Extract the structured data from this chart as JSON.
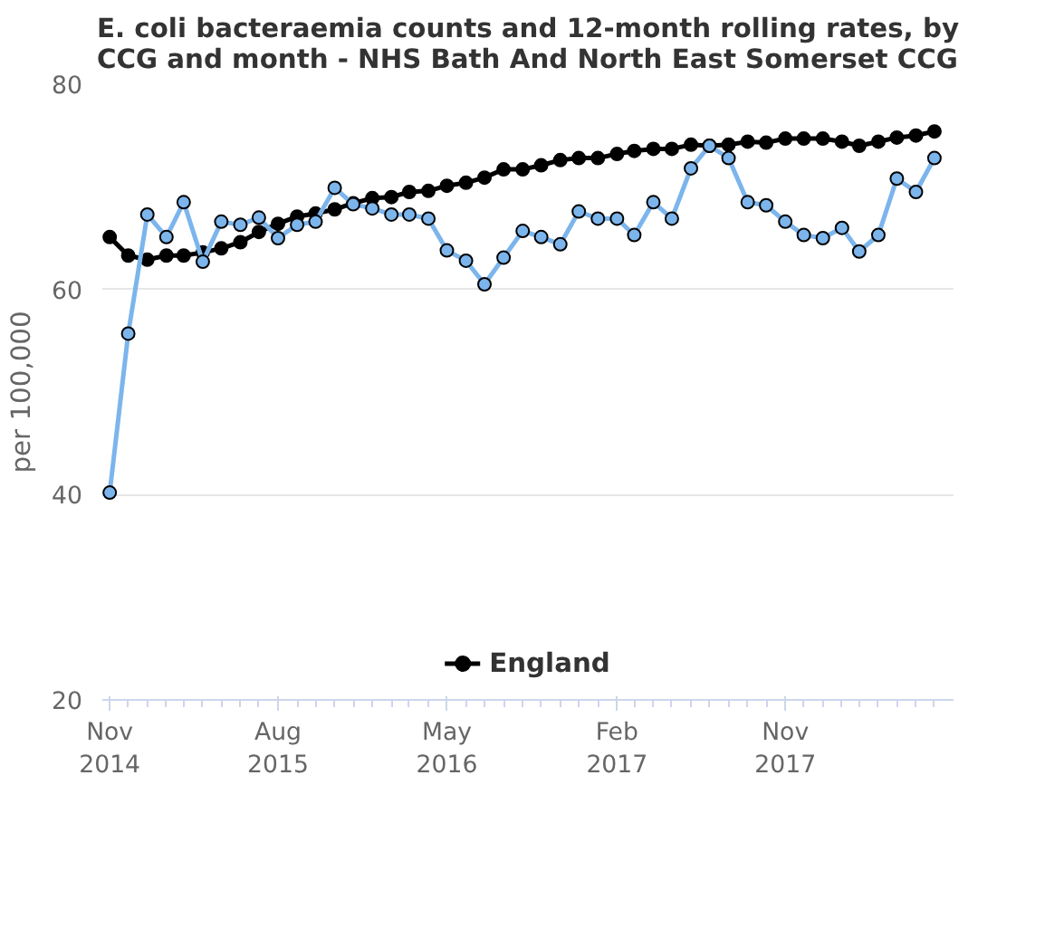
{
  "chart_data": {
    "type": "line",
    "title": "E. coli bacteraemia counts and 12-month rolling rates, by CCG and month - NHS Bath And North East Somerset CCG",
    "ylabel": "per 100,000",
    "x": [
      "2014-11",
      "2014-12",
      "2015-01",
      "2015-02",
      "2015-03",
      "2015-04",
      "2015-05",
      "2015-06",
      "2015-07",
      "2015-08",
      "2015-09",
      "2015-10",
      "2015-11",
      "2015-12",
      "2016-01",
      "2016-02",
      "2016-03",
      "2016-04",
      "2016-05",
      "2016-06",
      "2016-07",
      "2016-08",
      "2016-09",
      "2016-10",
      "2016-11",
      "2016-12",
      "2017-01",
      "2017-02",
      "2017-03",
      "2017-04",
      "2017-05",
      "2017-06",
      "2017-07",
      "2017-08",
      "2017-09",
      "2017-10",
      "2017-11",
      "2017-12",
      "2018-01",
      "2018-02",
      "2018-03",
      "2018-04",
      "2018-05",
      "2018-06",
      "2018-07"
    ],
    "series": [
      {
        "color": "#7cb5ec",
        "values": [
          40.2,
          55.7,
          67.3,
          65.1,
          68.5,
          62.7,
          66.6,
          66.3,
          67.0,
          65.0,
          66.3,
          66.6,
          69.9,
          68.3,
          67.9,
          67.3,
          67.3,
          66.9,
          63.8,
          62.8,
          60.5,
          63.1,
          65.7,
          65.1,
          64.4,
          67.6,
          66.9,
          66.9,
          65.3,
          68.5,
          66.9,
          71.8,
          74.0,
          72.8,
          68.5,
          68.2,
          66.6,
          65.3,
          65.0,
          66.0,
          63.7,
          65.3,
          70.8,
          69.5,
          72.8
        ]
      },
      {
        "name": "England",
        "color": "#000000",
        "values": [
          65.1,
          63.3,
          62.9,
          63.3,
          63.3,
          63.6,
          64.0,
          64.6,
          65.6,
          66.4,
          67.1,
          67.4,
          67.8,
          68.4,
          68.9,
          69.0,
          69.5,
          69.6,
          70.1,
          70.4,
          70.9,
          71.7,
          71.7,
          72.1,
          72.6,
          72.8,
          72.8,
          73.2,
          73.5,
          73.7,
          73.7,
          74.1,
          74.0,
          74.1,
          74.4,
          74.3,
          74.7,
          74.7,
          74.7,
          74.4,
          74.0,
          74.4,
          74.8,
          75.0,
          75.4
        ]
      }
    ],
    "xlim": [
      "2014-10-20",
      "2018-08-01"
    ],
    "xticks": [
      {
        "value": "2014-11",
        "label": "Nov 2014"
      },
      {
        "value": "2015-08",
        "label": "Aug 2015"
      },
      {
        "value": "2016-05",
        "label": "May 2016"
      },
      {
        "value": "2017-02",
        "label": "Feb 2017"
      },
      {
        "value": "2017-11",
        "label": "Nov 2017"
      }
    ],
    "ylim": [
      20,
      80
    ],
    "yticks": [
      20,
      40,
      60,
      80
    ],
    "grid": "y",
    "legend": "bottom",
    "marker": "circle",
    "line_style": "solid"
  }
}
